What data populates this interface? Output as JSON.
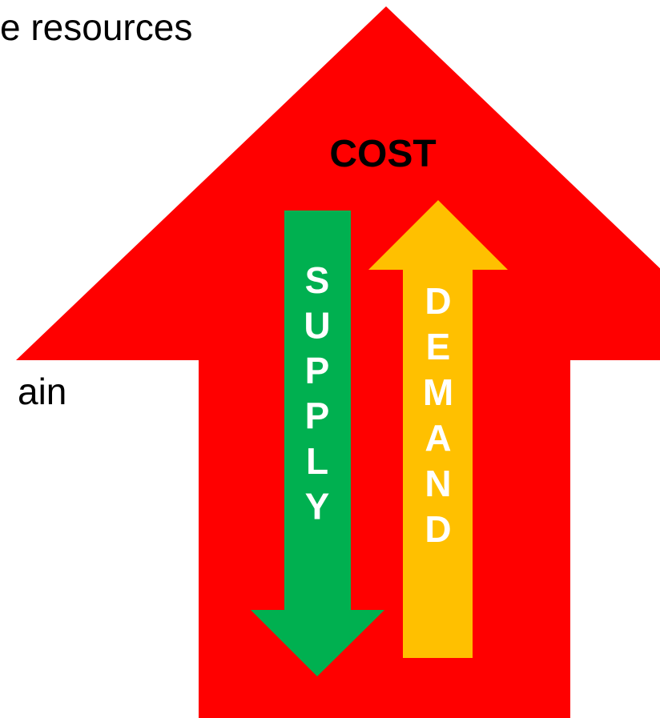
{
  "fragments": [
    "e resources",
    "ain"
  ],
  "cost_arrow": {
    "label": "COST"
  },
  "supply_arrow": {
    "letters": [
      "S",
      "U",
      "P",
      "P",
      "L",
      "Y"
    ]
  },
  "demand_arrow": {
    "letters": [
      "D",
      "E",
      "M",
      "A",
      "N",
      "D"
    ]
  }
}
